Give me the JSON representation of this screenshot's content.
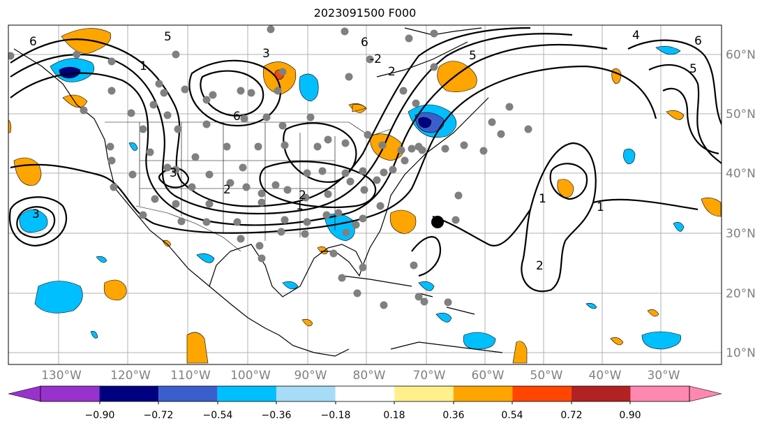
{
  "title": "2023091500 F000",
  "map": {
    "lon_labels": [
      "130°W",
      "120°W",
      "110°W",
      "100°W",
      "90°W",
      "80°W",
      "70°W",
      "60°W",
      "50°W",
      "40°W",
      "30°W"
    ],
    "lat_labels": [
      "60°N",
      "50°N",
      "40°N",
      "30°N",
      "20°N",
      "10°N"
    ],
    "contour_labels": [
      "3",
      "1",
      "5",
      "6",
      "6",
      "-2",
      "6",
      "2",
      "5",
      "2",
      "1",
      "3",
      "3",
      "2",
      "1",
      "2",
      "1",
      "4",
      "6",
      "5"
    ],
    "anomaly_colors": {
      "neg_light": "#a6dcf5",
      "neg_mid": "#00bfff",
      "neg_strong": "#3a5fcd",
      "neg_extreme": "#000080",
      "pos_light": "#fff08c",
      "pos_mid": "#ffa500",
      "pos_strong": "#ff4500",
      "station": "#808080",
      "marker": "#000000"
    }
  },
  "colorbar": {
    "ticks": [
      "−0.90",
      "−0.72",
      "−0.54",
      "−0.36",
      "−0.18",
      "0.18",
      "0.36",
      "0.54",
      "0.72",
      "0.90"
    ],
    "colors": [
      "#9932cc",
      "#000080",
      "#3a5fcd",
      "#00bfff",
      "#a6dcf5",
      "#ffffff",
      "#fff08c",
      "#ffa500",
      "#ff4500",
      "#b22222",
      "#ff88b0"
    ]
  }
}
